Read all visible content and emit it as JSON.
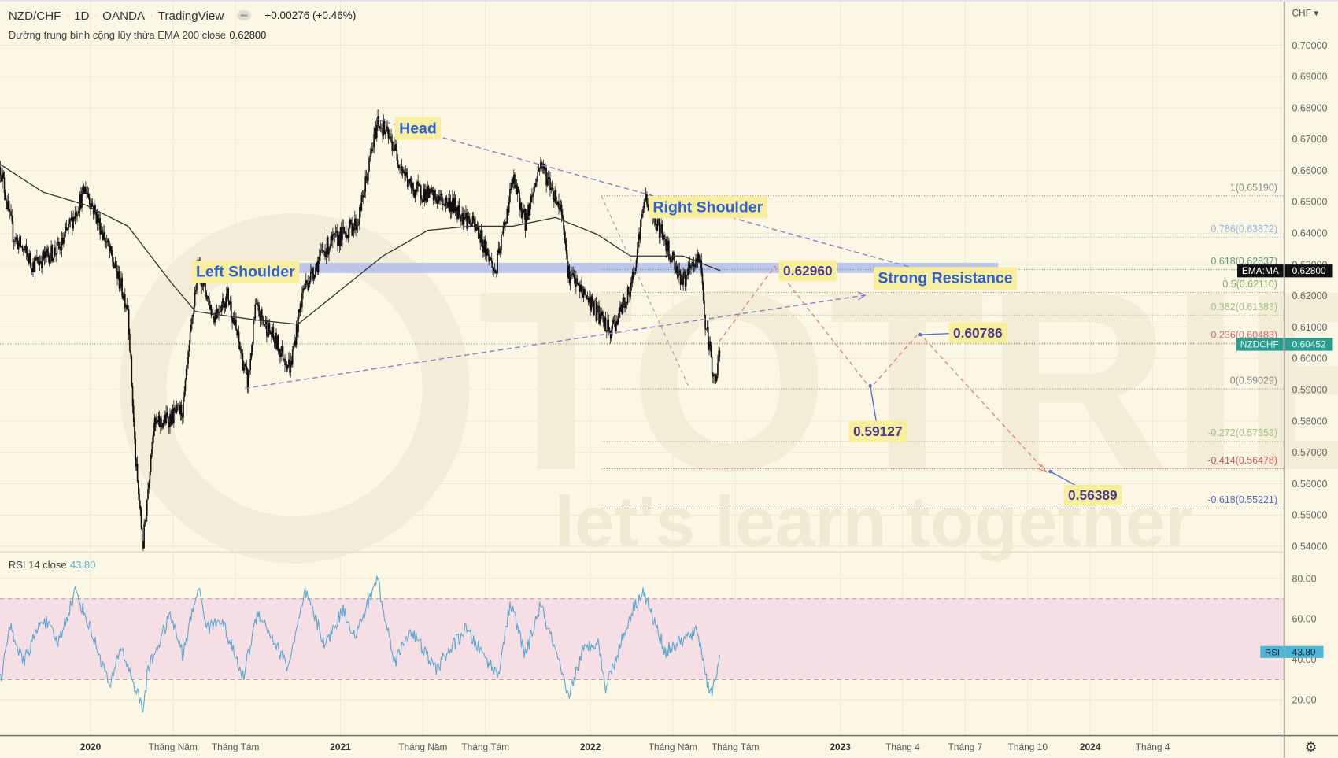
{
  "header": {
    "symbol": "NZD/CHF",
    "interval": "1D",
    "broker": "OANDA",
    "platform": "TradingView",
    "change": "+0.00276 (+0.46%)"
  },
  "legend": {
    "ema_label": "Đường trung bình cộng lũy thừa EMA 200 close",
    "ema_value": "0.62800"
  },
  "rsi_legend": {
    "label": "RSI 14 close",
    "value": "43.80"
  },
  "axis": {
    "currency": "CHF ▾",
    "settings_icon": "gear-icon"
  },
  "tags": {
    "ema_name": "EMA:MA",
    "ema_value": "0.62800",
    "price_name": "NZDCHF",
    "price_value": "0.60452",
    "rsi_name": "RSI",
    "rsi_value": "43.80"
  },
  "colors": {
    "background": "#fcf6e4",
    "candle": "#111111",
    "ema": "#333333",
    "rsi": "#5aa6d0",
    "rsi_band": "#f6dfe4",
    "resistance": "#aab6ec",
    "label_blue": "#2f5fd6",
    "label_num": "#4b3b8f",
    "label_bg": "#f7ee9e",
    "price_tag": "#2a9d8f",
    "rsi_tag": "#4ab8d8"
  },
  "watermark": {
    "brand": "TOTRIEU",
    "slogan": "let's learn together"
  },
  "chart_data": {
    "type": "candlestick",
    "title": "NZD/CHF 1D OANDA",
    "price_axis": {
      "min": 0.54,
      "max": 0.7,
      "ticks": [
        "0.70000",
        "0.69000",
        "0.68000",
        "0.67000",
        "0.66000",
        "0.65000",
        "0.64000",
        "0.63000",
        "0.62000",
        "0.61000",
        "0.60000",
        "0.59000",
        "0.58000",
        "0.57000",
        "0.56000",
        "0.55000",
        "0.54000"
      ]
    },
    "time_axis": [
      {
        "label": "2020",
        "t": 2020.0,
        "bold": true
      },
      {
        "label": "Tháng Năm",
        "t": 2020.33
      },
      {
        "label": "Tháng Tám",
        "t": 2020.58
      },
      {
        "label": "2021",
        "t": 2021.0,
        "bold": true
      },
      {
        "label": "Tháng Năm",
        "t": 2021.33
      },
      {
        "label": "Tháng Tám",
        "t": 2021.58
      },
      {
        "label": "2022",
        "t": 2022.0,
        "bold": true
      },
      {
        "label": "Tháng Năm",
        "t": 2022.33
      },
      {
        "label": "Tháng Tám",
        "t": 2022.58
      },
      {
        "label": "2023",
        "t": 2023.0,
        "bold": true
      },
      {
        "label": "Tháng 4",
        "t": 2023.25
      },
      {
        "label": "Tháng 7",
        "t": 2023.5
      },
      {
        "label": "Tháng 10",
        "t": 2023.75
      },
      {
        "label": "2024",
        "t": 2024.0,
        "bold": true
      },
      {
        "label": "Tháng 4",
        "t": 2024.25
      }
    ],
    "price_path": [
      [
        2019.64,
        0.661
      ],
      [
        2019.69,
        0.6395
      ],
      [
        2019.77,
        0.63
      ],
      [
        2019.88,
        0.6354
      ],
      [
        2019.98,
        0.6545
      ],
      [
        2020.06,
        0.638
      ],
      [
        2020.15,
        0.6163
      ],
      [
        2020.18,
        0.5673
      ],
      [
        2020.21,
        0.54
      ],
      [
        2020.25,
        0.578
      ],
      [
        2020.37,
        0.5837
      ],
      [
        2020.43,
        0.63
      ],
      [
        2020.49,
        0.6136
      ],
      [
        2020.55,
        0.6204
      ],
      [
        2020.63,
        0.5918
      ],
      [
        2020.66,
        0.6163
      ],
      [
        2020.8,
        0.5973
      ],
      [
        2020.85,
        0.6218
      ],
      [
        2020.94,
        0.6354
      ],
      [
        2021.07,
        0.6436
      ],
      [
        2021.15,
        0.6763
      ],
      [
        2021.21,
        0.6681
      ],
      [
        2021.28,
        0.6545
      ],
      [
        2021.45,
        0.649
      ],
      [
        2021.55,
        0.6409
      ],
      [
        2021.62,
        0.6272
      ],
      [
        2021.69,
        0.6572
      ],
      [
        2021.74,
        0.6436
      ],
      [
        2021.8,
        0.6627
      ],
      [
        2021.89,
        0.6463
      ],
      [
        2021.91,
        0.6272
      ],
      [
        2021.99,
        0.6191
      ],
      [
        2022.08,
        0.6082
      ],
      [
        2022.16,
        0.6218
      ],
      [
        2022.22,
        0.6518
      ],
      [
        2022.28,
        0.6409
      ],
      [
        2022.37,
        0.6245
      ],
      [
        2022.44,
        0.6327
      ],
      [
        2022.46,
        0.6109
      ],
      [
        2022.5,
        0.5918
      ],
      [
        2022.52,
        0.6045
      ]
    ],
    "ema_200": [
      [
        2019.64,
        0.6619
      ],
      [
        2019.81,
        0.6531
      ],
      [
        2019.98,
        0.649
      ],
      [
        2020.15,
        0.6422
      ],
      [
        2020.32,
        0.6245
      ],
      [
        2020.42,
        0.615
      ],
      [
        2020.66,
        0.6123
      ],
      [
        2020.83,
        0.6109
      ],
      [
        2021.0,
        0.6218
      ],
      [
        2021.17,
        0.6327
      ],
      [
        2021.35,
        0.6409
      ],
      [
        2021.52,
        0.6422
      ],
      [
        2021.69,
        0.6422
      ],
      [
        2021.86,
        0.645
      ],
      [
        2022.03,
        0.6395
      ],
      [
        2022.16,
        0.6327
      ],
      [
        2022.37,
        0.6327
      ],
      [
        2022.52,
        0.628
      ]
    ],
    "rsi": {
      "levels": [
        20,
        40,
        60,
        80
      ],
      "band": [
        30,
        70
      ],
      "path": [
        [
          2019.64,
          30
        ],
        [
          2019.68,
          57
        ],
        [
          2019.73,
          38
        ],
        [
          2019.81,
          61
        ],
        [
          2019.87,
          48
        ],
        [
          2019.94,
          74
        ],
        [
          2020.0,
          55
        ],
        [
          2020.08,
          26
        ],
        [
          2020.12,
          47
        ],
        [
          2020.21,
          15
        ],
        [
          2020.23,
          35
        ],
        [
          2020.32,
          62
        ],
        [
          2020.37,
          42
        ],
        [
          2020.43,
          76
        ],
        [
          2020.47,
          55
        ],
        [
          2020.52,
          61
        ],
        [
          2020.61,
          31
        ],
        [
          2020.67,
          64
        ],
        [
          2020.79,
          36
        ],
        [
          2020.86,
          73
        ],
        [
          2020.94,
          47
        ],
        [
          2021.01,
          65
        ],
        [
          2021.06,
          51
        ],
        [
          2021.15,
          81
        ],
        [
          2021.17,
          64
        ],
        [
          2021.22,
          39
        ],
        [
          2021.28,
          55
        ],
        [
          2021.38,
          35
        ],
        [
          2021.5,
          55
        ],
        [
          2021.63,
          32
        ],
        [
          2021.68,
          68
        ],
        [
          2021.74,
          42
        ],
        [
          2021.8,
          67
        ],
        [
          2021.86,
          44
        ],
        [
          2021.91,
          21
        ],
        [
          2021.97,
          44
        ],
        [
          2022.03,
          50
        ],
        [
          2022.06,
          26
        ],
        [
          2022.17,
          65
        ],
        [
          2022.21,
          74
        ],
        [
          2022.3,
          44
        ],
        [
          2022.43,
          54
        ],
        [
          2022.47,
          27
        ],
        [
          2022.49,
          24
        ],
        [
          2022.52,
          43.8
        ]
      ]
    },
    "fibonacci": [
      {
        "label": "1(0.65190)",
        "price": 0.6519,
        "color": "#8a8a8a"
      },
      {
        "label": "0.786(0.63872)",
        "price": 0.63872,
        "color": "#8fb8e0"
      },
      {
        "label": "0.618(0.62837)",
        "price": 0.62837,
        "color": "#5f9a74"
      },
      {
        "label": "0.5(0.62110)",
        "price": 0.6211,
        "color": "#86ac66"
      },
      {
        "label": "0.382(0.61383)",
        "price": 0.61383,
        "color": "#a6c08a"
      },
      {
        "label": "0.236(0.60483)",
        "price": 0.60483,
        "color": "#d06a6a"
      },
      {
        "label": "0(0.59029)",
        "price": 0.59029,
        "color": "#8a8a8a"
      },
      {
        "label": "-0.272(0.57353)",
        "price": 0.57353,
        "color": "#a6c08a"
      },
      {
        "label": "-0.414(0.56478)",
        "price": 0.56478,
        "color": "#c85a5a"
      },
      {
        "label": "-0.618(0.55221)",
        "price": 0.55221,
        "color": "#5a6ac8"
      }
    ],
    "pattern_labels": [
      {
        "text": "Head",
        "t": 2021.31,
        "price": 0.6735
      },
      {
        "text": "Left Shoulder",
        "t": 2020.62,
        "price": 0.6277
      },
      {
        "text": "Right Shoulder",
        "t": 2022.47,
        "price": 0.6484
      },
      {
        "text": "Strong Resistance",
        "t": 2023.42,
        "price": 0.6257
      }
    ],
    "targets": [
      {
        "text": "0.62960",
        "t": 2022.87,
        "price": 0.6281,
        "anchor_t": 2022.84,
        "anchor_price": 0.6269
      },
      {
        "text": "0.60786",
        "t": 2023.55,
        "price": 0.6083,
        "anchor_t": 2023.32,
        "anchor_price": 0.6076
      },
      {
        "text": "0.59127",
        "t": 2023.15,
        "price": 0.5769,
        "anchor_t": 2023.12,
        "anchor_price": 0.5913
      },
      {
        "text": "0.56389",
        "t": 2024.01,
        "price": 0.5565,
        "anchor_t": 2023.84,
        "anchor_price": 0.5639
      }
    ]
  }
}
